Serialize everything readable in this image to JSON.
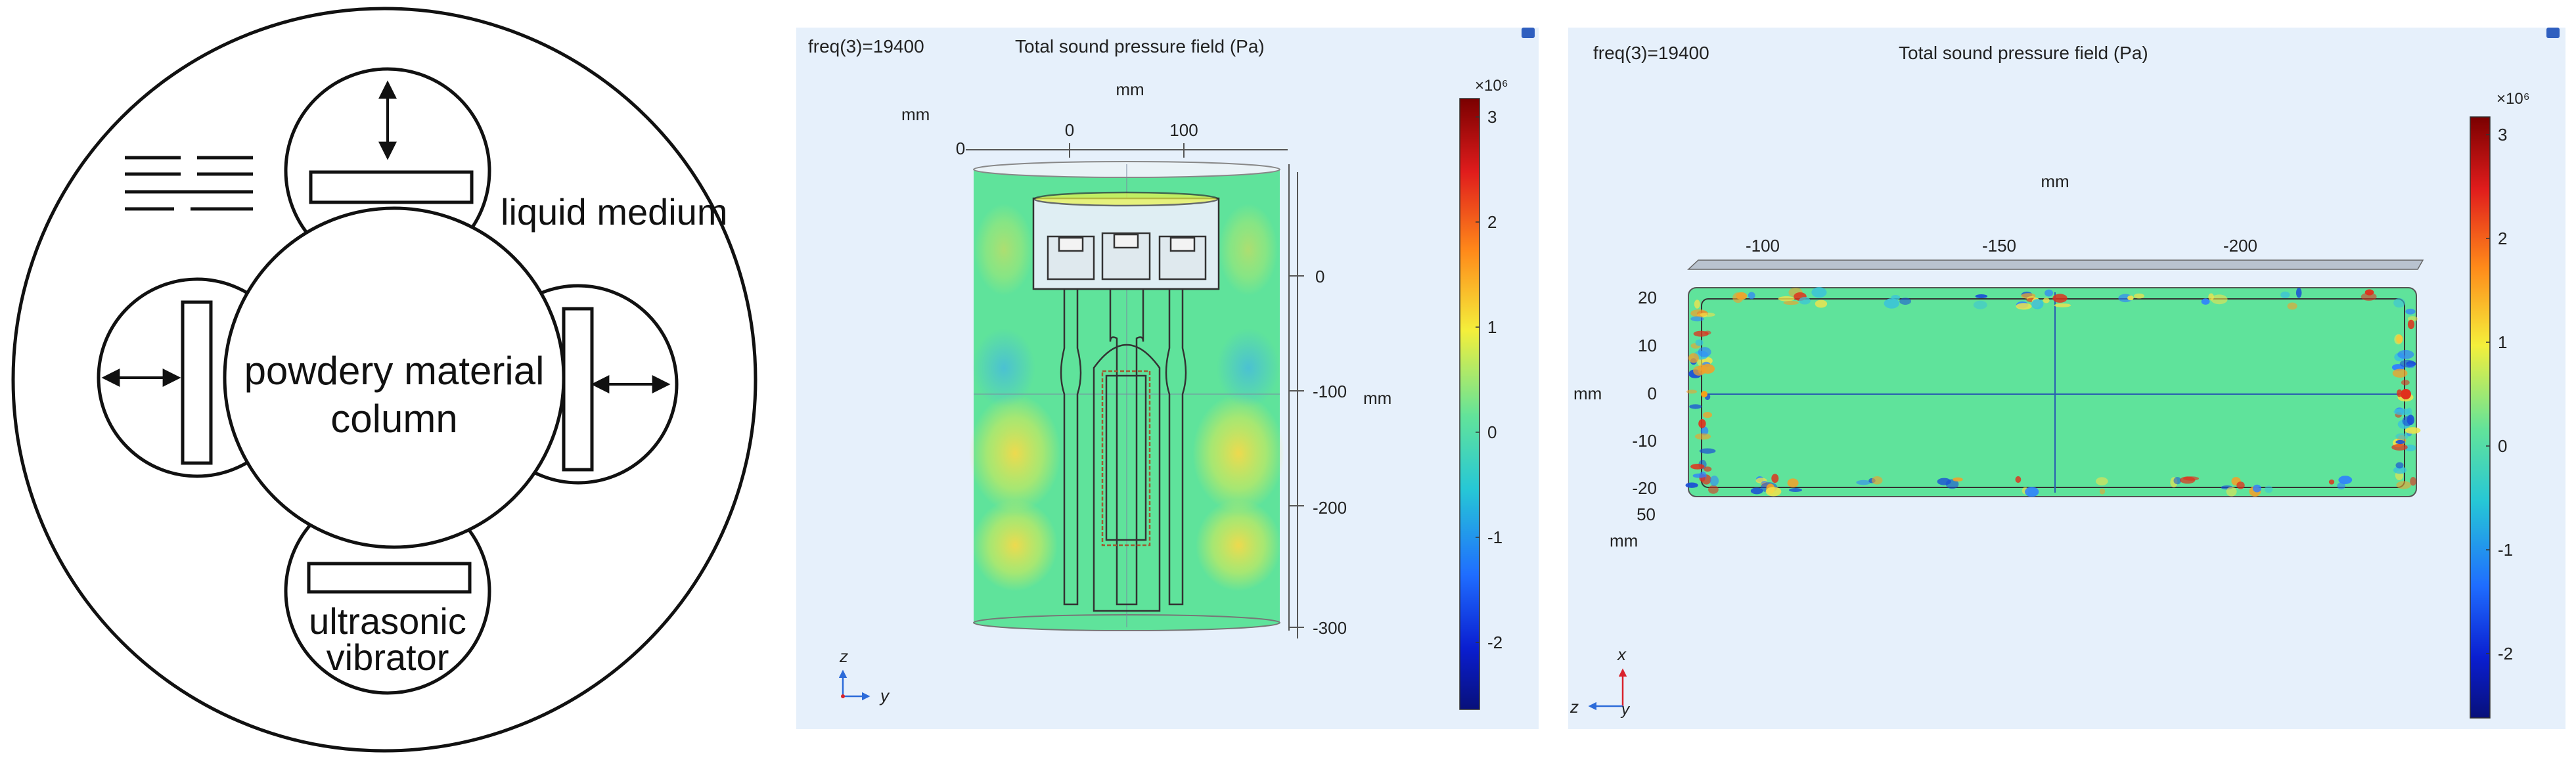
{
  "diagram": {
    "labels": {
      "column": [
        "powdery material",
        "column"
      ],
      "liquid": "liquid medium",
      "vibrator": [
        "ultrasonic",
        "vibrator"
      ]
    }
  },
  "side_view": {
    "freq": "freq(3)=19400",
    "title": "Total sound pressure field (Pa)",
    "unit_top": "mm",
    "unit_left": "mm",
    "unit_right": "mm",
    "top_ticks": [
      "0",
      "0",
      "100"
    ],
    "right_ticks": [
      "0",
      "-100",
      "-200",
      "-300"
    ],
    "colorbar": {
      "exp": "×10⁶",
      "ticks": [
        "3",
        "2",
        "1",
        "0",
        "-1",
        "-2"
      ]
    },
    "axes": {
      "up": "z",
      "right": "y"
    }
  },
  "top_view": {
    "freq": "freq(3)=19400",
    "title": "Total sound pressure field (Pa)",
    "unit_top": "mm",
    "unit_left": "mm",
    "unit_bottom": "mm",
    "top_ticks": [
      "-100",
      "-150",
      "-200"
    ],
    "left_ticks": [
      "20",
      "10",
      "0",
      "-10",
      "-20"
    ],
    "bottom_tick": "50",
    "colorbar": {
      "exp": "×10⁶",
      "ticks": [
        "3",
        "2",
        "1",
        "0",
        "-1",
        "-2"
      ]
    },
    "axes": {
      "up": "x",
      "left": "z",
      "origin": "y"
    }
  },
  "colors": {
    "panel_bg": "#e6f0fb",
    "field_base": "#5fe39b",
    "hot": "#f2e34b",
    "cold": "#2f7fff"
  }
}
